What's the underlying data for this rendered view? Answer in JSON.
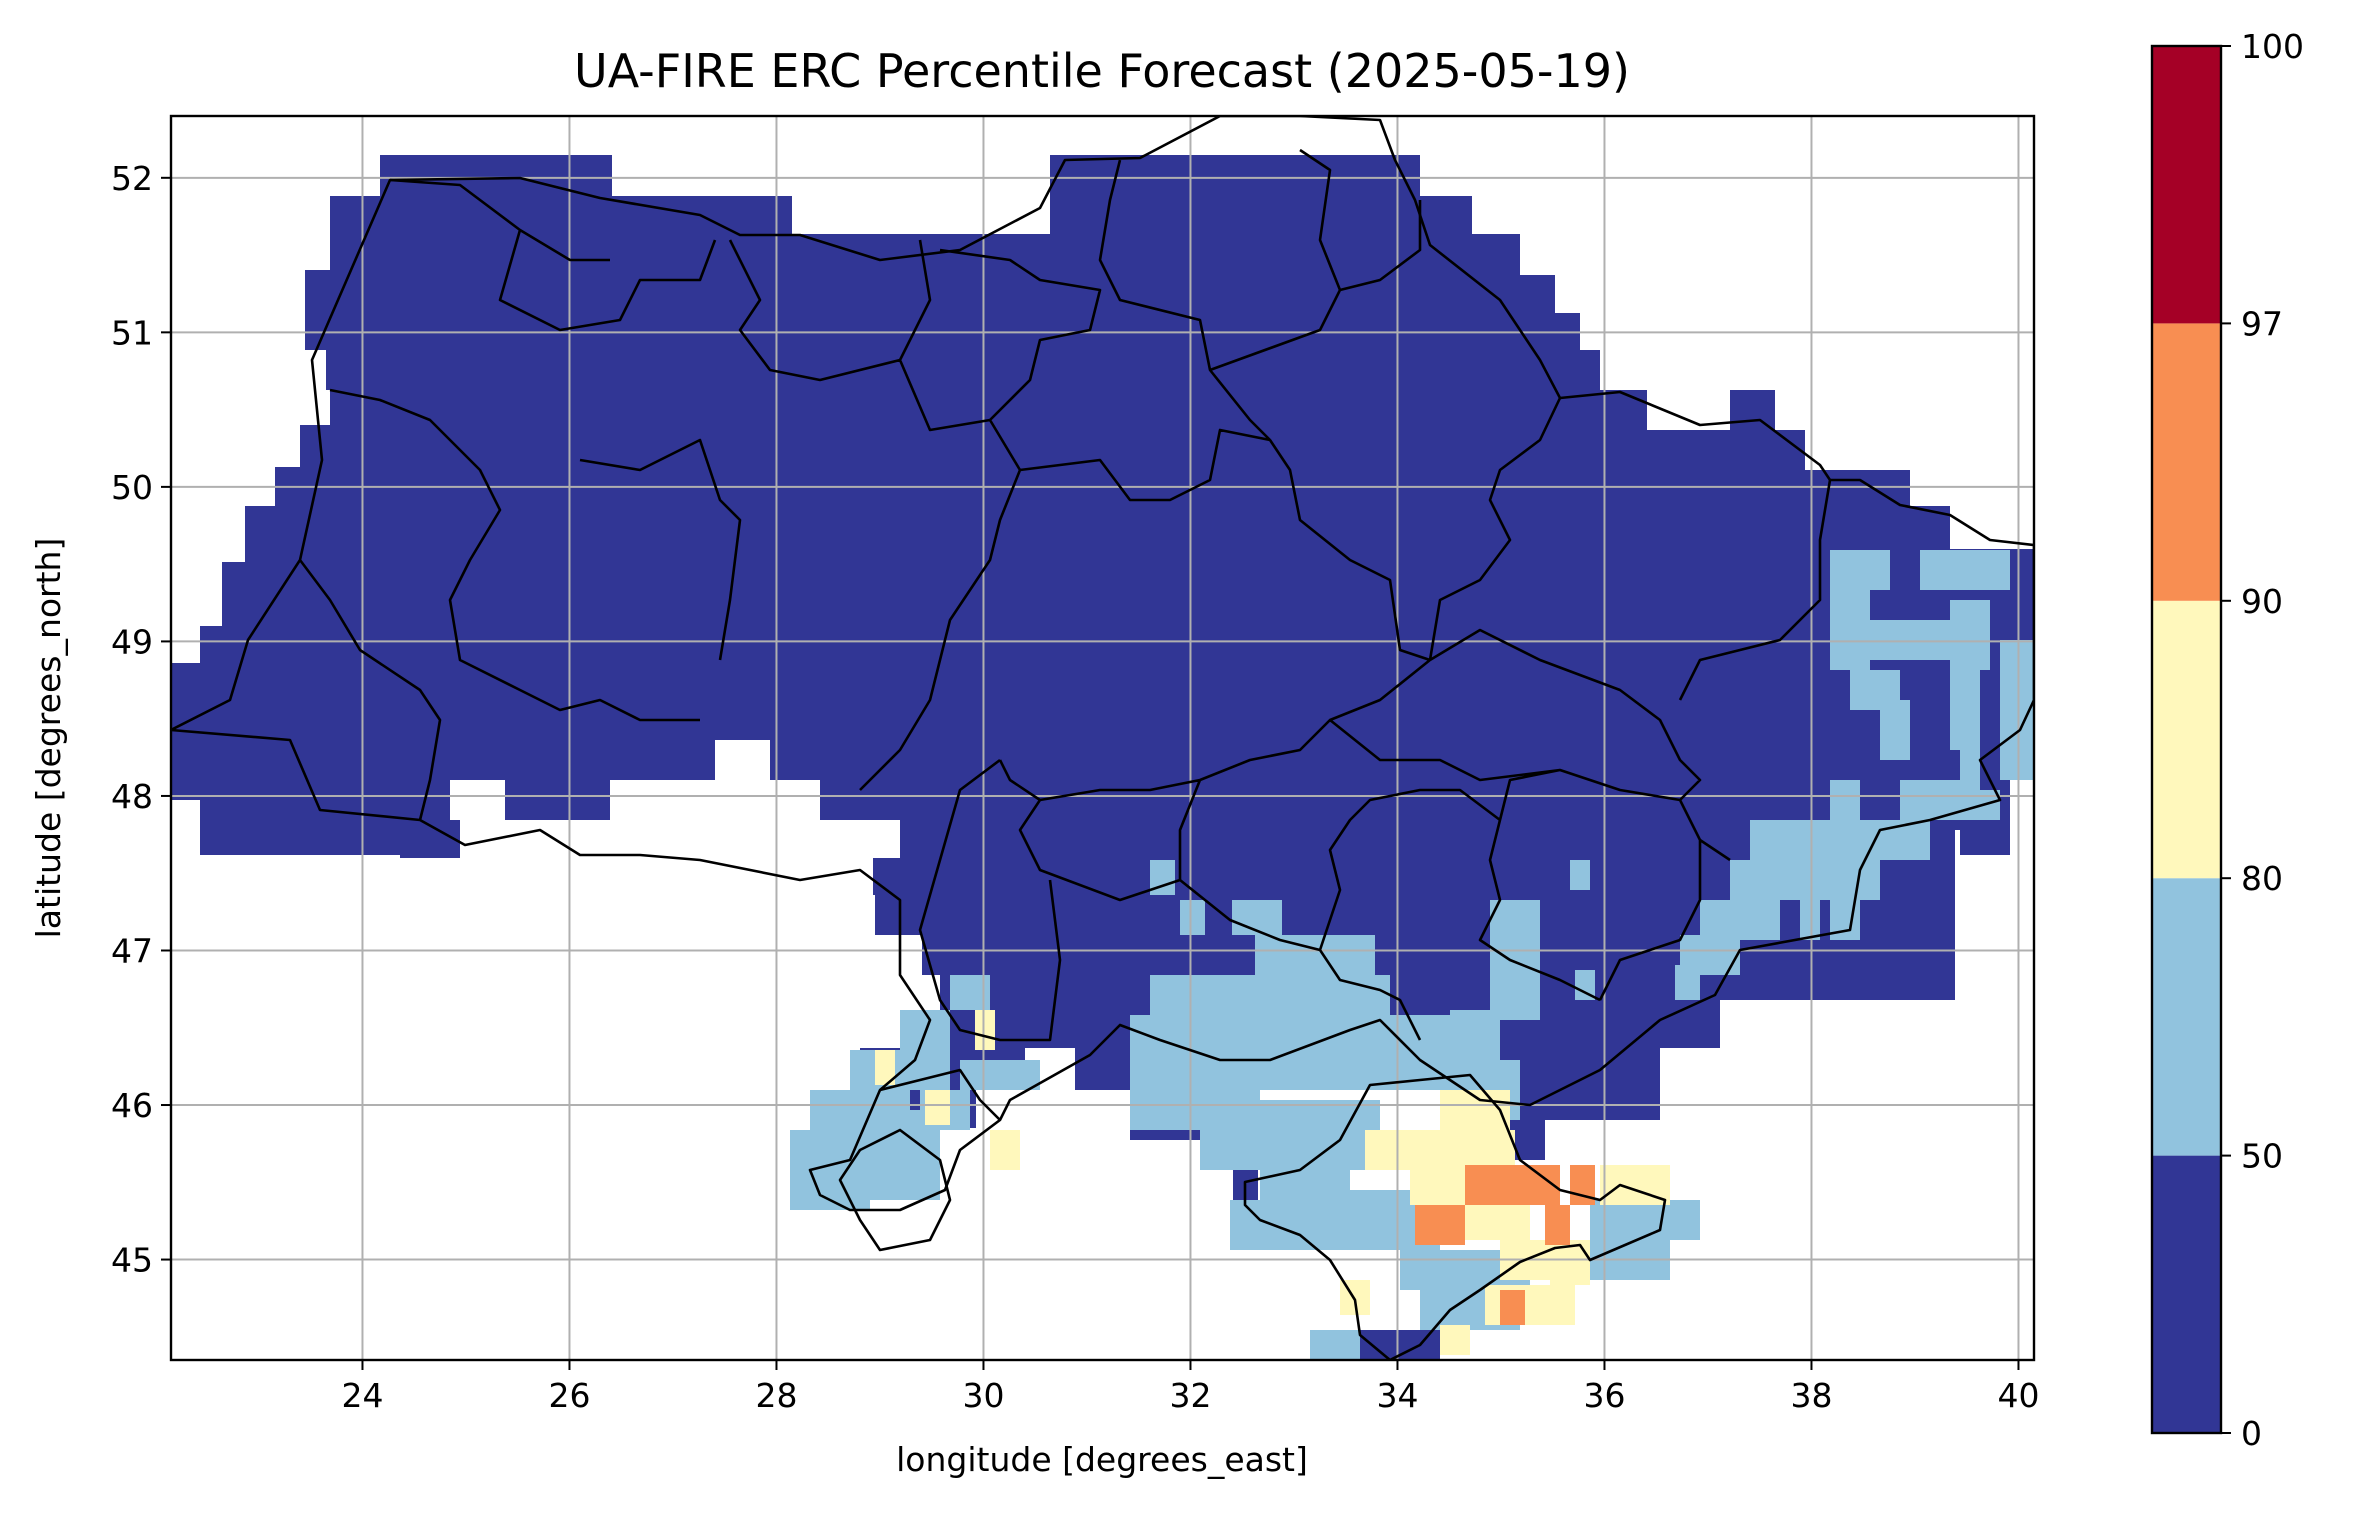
{
  "chart_data": {
    "type": "heatmap",
    "title": "UA-FIRE ERC Percentile Forecast (2025-05-19)",
    "xlabel": "longitude [degrees_east]",
    "ylabel": "latitude [degrees_north]",
    "xlim": [
      22.15,
      40.15
    ],
    "ylim": [
      44.35,
      52.4
    ],
    "xticks": [
      24,
      26,
      28,
      30,
      32,
      34,
      36,
      38,
      40
    ],
    "yticks": [
      45,
      46,
      47,
      48,
      49,
      50,
      51,
      52
    ],
    "grid": true,
    "colorbar": {
      "bounds": [
        0,
        50,
        80,
        90,
        97,
        100
      ],
      "colors": [
        "#313695",
        "#91c3de",
        "#fff8bc",
        "#f88e52",
        "#a50026"
      ],
      "tick_labels": [
        "0",
        "50",
        "80",
        "90",
        "97",
        "100"
      ]
    },
    "colors": {
      "class_50_80": "#91c3de",
      "class_80_90": "#fff8bc",
      "class_90_97": "#f88e52",
      "border": "#000000",
      "grid": "#b0b0b0"
    }
  }
}
